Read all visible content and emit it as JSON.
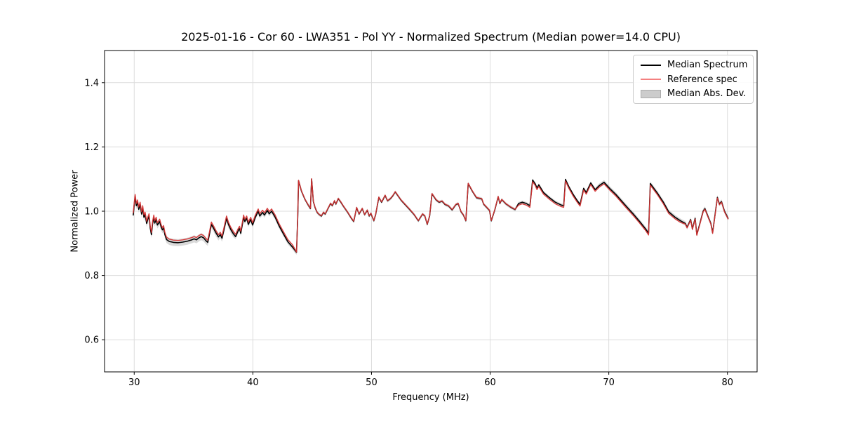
{
  "chart_data": {
    "type": "line",
    "title": "2025-01-16 - Cor 60 - LWA351 - Pol YY - Normalized Spectrum (Median power=14.0 CPU)",
    "xlabel": "Frequency (MHz)",
    "ylabel": "Normalized Power",
    "xlim": [
      27.5,
      82.5
    ],
    "ylim": [
      0.5,
      1.5
    ],
    "grid": true,
    "xticks": [
      {
        "v": 30,
        "label": "30"
      },
      {
        "v": 40,
        "label": "40"
      },
      {
        "v": 50,
        "label": "50"
      },
      {
        "v": 60,
        "label": "60"
      },
      {
        "v": 70,
        "label": "70"
      },
      {
        "v": 80,
        "label": "80"
      }
    ],
    "yticks": [
      {
        "v": 0.6,
        "label": "0.6"
      },
      {
        "v": 0.8,
        "label": "0.8"
      },
      {
        "v": 1.0,
        "label": "1.0"
      },
      {
        "v": 1.2,
        "label": "1.2"
      },
      {
        "v": 1.4,
        "label": "1.4"
      }
    ],
    "colors": {
      "median_line": "#000000",
      "reference_line": "#d63434",
      "reference_legend": "#f48080",
      "band_fill": "#aaaaaa",
      "band_legend": "#cccccc",
      "band_legend_edge": "#ababab",
      "grid_line": "#dcdcdc",
      "axis": "#000000",
      "background": "#ffffff"
    },
    "legend": {
      "position": "upper-right",
      "entries": [
        {
          "label": "Median Spectrum",
          "swatch": "line",
          "color": "#000000"
        },
        {
          "label": "Reference spec",
          "swatch": "line",
          "color": "#f48080"
        },
        {
          "label": "Median Abs. Dev.",
          "swatch": "patch",
          "color": "#cccccc",
          "edge": "#ababab"
        }
      ]
    },
    "series": [
      {
        "name": "Median Spectrum",
        "points": [
          [
            29.92,
            0.988
          ],
          [
            30.0,
            1.02
          ],
          [
            30.08,
            1.045
          ],
          [
            30.18,
            1.017
          ],
          [
            30.28,
            1.028
          ],
          [
            30.38,
            1.006
          ],
          [
            30.5,
            1.021
          ],
          [
            30.62,
            0.991
          ],
          [
            30.72,
            1.01
          ],
          [
            30.82,
            0.981
          ],
          [
            30.92,
            0.99
          ],
          [
            31.05,
            0.962
          ],
          [
            31.15,
            0.975
          ],
          [
            31.25,
            0.985
          ],
          [
            31.35,
            0.948
          ],
          [
            31.45,
            0.927
          ],
          [
            31.55,
            0.962
          ],
          [
            31.65,
            0.981
          ],
          [
            31.73,
            0.963
          ],
          [
            31.85,
            0.974
          ],
          [
            31.95,
            0.957
          ],
          [
            32.05,
            0.962
          ],
          [
            32.15,
            0.968
          ],
          [
            32.28,
            0.95
          ],
          [
            32.38,
            0.942
          ],
          [
            32.48,
            0.948
          ],
          [
            32.58,
            0.928
          ],
          [
            32.72,
            0.912
          ],
          [
            32.95,
            0.906
          ],
          [
            33.3,
            0.903
          ],
          [
            33.7,
            0.902
          ],
          [
            34.1,
            0.904
          ],
          [
            34.5,
            0.907
          ],
          [
            34.85,
            0.911
          ],
          [
            35.05,
            0.914
          ],
          [
            35.25,
            0.911
          ],
          [
            35.45,
            0.917
          ],
          [
            35.65,
            0.921
          ],
          [
            35.85,
            0.917
          ],
          [
            36.05,
            0.908
          ],
          [
            36.2,
            0.903
          ],
          [
            36.35,
            0.93
          ],
          [
            36.5,
            0.959
          ],
          [
            36.7,
            0.946
          ],
          [
            36.9,
            0.932
          ],
          [
            37.1,
            0.92
          ],
          [
            37.25,
            0.927
          ],
          [
            37.4,
            0.916
          ],
          [
            37.6,
            0.948
          ],
          [
            37.78,
            0.978
          ],
          [
            37.95,
            0.958
          ],
          [
            38.15,
            0.942
          ],
          [
            38.35,
            0.93
          ],
          [
            38.55,
            0.921
          ],
          [
            38.75,
            0.938
          ],
          [
            38.88,
            0.946
          ],
          [
            38.98,
            0.931
          ],
          [
            39.1,
            0.955
          ],
          [
            39.22,
            0.981
          ],
          [
            39.32,
            0.968
          ],
          [
            39.48,
            0.978
          ],
          [
            39.62,
            0.959
          ],
          [
            39.82,
            0.974
          ],
          [
            39.98,
            0.957
          ],
          [
            40.2,
            0.98
          ],
          [
            40.45,
            1.0
          ],
          [
            40.58,
            0.985
          ],
          [
            40.82,
            0.996
          ],
          [
            40.98,
            0.988
          ],
          [
            41.22,
            1.002
          ],
          [
            41.38,
            0.992
          ],
          [
            41.58,
            1.0
          ],
          [
            41.88,
            0.981
          ],
          [
            42.2,
            0.955
          ],
          [
            42.6,
            0.928
          ],
          [
            42.95,
            0.905
          ],
          [
            43.35,
            0.888
          ],
          [
            43.68,
            0.872
          ],
          [
            43.78,
            0.98
          ],
          [
            43.85,
            1.095
          ],
          [
            44.1,
            1.062
          ],
          [
            44.4,
            1.036
          ],
          [
            44.7,
            1.017
          ],
          [
            44.85,
            1.008
          ],
          [
            44.95,
            1.1
          ],
          [
            45.1,
            1.03
          ],
          [
            45.25,
            1.011
          ],
          [
            45.42,
            0.996
          ],
          [
            45.6,
            0.989
          ],
          [
            45.78,
            0.985
          ],
          [
            45.95,
            0.996
          ],
          [
            46.1,
            0.991
          ],
          [
            46.3,
            1.006
          ],
          [
            46.55,
            1.024
          ],
          [
            46.7,
            1.017
          ],
          [
            46.88,
            1.032
          ],
          [
            47.0,
            1.022
          ],
          [
            47.2,
            1.039
          ],
          [
            47.42,
            1.028
          ],
          [
            47.6,
            1.017
          ],
          [
            48.0,
            0.996
          ],
          [
            48.3,
            0.978
          ],
          [
            48.5,
            0.968
          ],
          [
            48.75,
            1.011
          ],
          [
            48.95,
            0.991
          ],
          [
            49.22,
            1.008
          ],
          [
            49.42,
            0.989
          ],
          [
            49.65,
            1.003
          ],
          [
            49.8,
            0.985
          ],
          [
            49.95,
            0.993
          ],
          [
            50.2,
            0.97
          ],
          [
            50.35,
            0.99
          ],
          [
            50.62,
            1.043
          ],
          [
            50.85,
            1.028
          ],
          [
            51.15,
            1.049
          ],
          [
            51.35,
            1.032
          ],
          [
            51.6,
            1.039
          ],
          [
            51.8,
            1.048
          ],
          [
            52.0,
            1.06
          ],
          [
            52.5,
            1.034
          ],
          [
            53.2,
            1.006
          ],
          [
            53.6,
            0.989
          ],
          [
            53.95,
            0.97
          ],
          [
            54.3,
            0.991
          ],
          [
            54.5,
            0.985
          ],
          [
            54.7,
            0.959
          ],
          [
            54.9,
            0.985
          ],
          [
            55.1,
            1.054
          ],
          [
            55.45,
            1.035
          ],
          [
            55.7,
            1.028
          ],
          [
            55.95,
            1.031
          ],
          [
            56.2,
            1.021
          ],
          [
            56.5,
            1.016
          ],
          [
            56.8,
            1.004
          ],
          [
            57.1,
            1.02
          ],
          [
            57.3,
            1.024
          ],
          [
            57.55,
            0.998
          ],
          [
            57.75,
            0.988
          ],
          [
            57.95,
            0.97
          ],
          [
            58.15,
            1.086
          ],
          [
            58.5,
            1.062
          ],
          [
            58.85,
            1.042
          ],
          [
            59.3,
            1.038
          ],
          [
            59.45,
            1.022
          ],
          [
            59.7,
            1.012
          ],
          [
            59.95,
            1.002
          ],
          [
            60.1,
            0.97
          ],
          [
            60.4,
            1.005
          ],
          [
            60.68,
            1.045
          ],
          [
            60.82,
            1.024
          ],
          [
            60.98,
            1.036
          ],
          [
            61.35,
            1.022
          ],
          [
            61.75,
            1.012
          ],
          [
            62.1,
            1.005
          ],
          [
            62.4,
            1.024
          ],
          [
            62.7,
            1.028
          ],
          [
            63.05,
            1.024
          ],
          [
            63.35,
            1.017
          ],
          [
            63.58,
            1.097
          ],
          [
            63.8,
            1.085
          ],
          [
            63.95,
            1.072
          ],
          [
            64.1,
            1.082
          ],
          [
            64.5,
            1.058
          ],
          [
            65.0,
            1.042
          ],
          [
            65.5,
            1.028
          ],
          [
            66.0,
            1.019
          ],
          [
            66.2,
            1.017
          ],
          [
            66.35,
            1.099
          ],
          [
            66.65,
            1.075
          ],
          [
            67.0,
            1.052
          ],
          [
            67.3,
            1.035
          ],
          [
            67.58,
            1.021
          ],
          [
            67.88,
            1.071
          ],
          [
            68.1,
            1.058
          ],
          [
            68.48,
            1.088
          ],
          [
            68.85,
            1.067
          ],
          [
            69.2,
            1.08
          ],
          [
            69.6,
            1.09
          ],
          [
            70.1,
            1.07
          ],
          [
            70.6,
            1.052
          ],
          [
            71.1,
            1.031
          ],
          [
            71.6,
            1.01
          ],
          [
            72.1,
            0.99
          ],
          [
            72.6,
            0.968
          ],
          [
            73.1,
            0.945
          ],
          [
            73.35,
            0.931
          ],
          [
            73.5,
            1.086
          ],
          [
            74.1,
            1.056
          ],
          [
            74.6,
            1.028
          ],
          [
            75.05,
            0.998
          ],
          [
            75.6,
            0.981
          ],
          [
            76.05,
            0.97
          ],
          [
            76.45,
            0.962
          ],
          [
            76.6,
            0.95
          ],
          [
            76.9,
            0.974
          ],
          [
            77.05,
            0.945
          ],
          [
            77.28,
            0.978
          ],
          [
            77.42,
            0.927
          ],
          [
            77.65,
            0.958
          ],
          [
            77.95,
            1.0
          ],
          [
            78.1,
            1.008
          ],
          [
            78.35,
            0.985
          ],
          [
            78.6,
            0.962
          ],
          [
            78.75,
            0.933
          ],
          [
            79.15,
            1.043
          ],
          [
            79.32,
            1.022
          ],
          [
            79.5,
            1.03
          ],
          [
            79.75,
            1.0
          ],
          [
            80.05,
            0.978
          ]
        ]
      },
      {
        "name": "Reference spec",
        "derived_from": "Median Spectrum",
        "offset_segments": [
          {
            "range": [
              29.9,
              43.6
            ],
            "dy": 0.007
          },
          {
            "range": [
              43.6,
              62.3
            ],
            "dy": 0.001
          },
          {
            "range": [
              62.3,
              76.2
            ],
            "dy": -0.005
          },
          {
            "range": [
              76.2,
              80.2
            ],
            "dy": -0.002
          }
        ]
      },
      {
        "name": "Median Abs. Dev.",
        "band_half_width_segments": [
          {
            "range": [
              29.9,
              38.5
            ],
            "hw": 0.011
          },
          {
            "range": [
              38.5,
              43.8
            ],
            "hw": 0.008
          },
          {
            "range": [
              43.8,
              69.0
            ],
            "hw": 0.005
          },
          {
            "range": [
              69.0,
              80.2
            ],
            "hw": 0.007
          }
        ]
      }
    ]
  }
}
